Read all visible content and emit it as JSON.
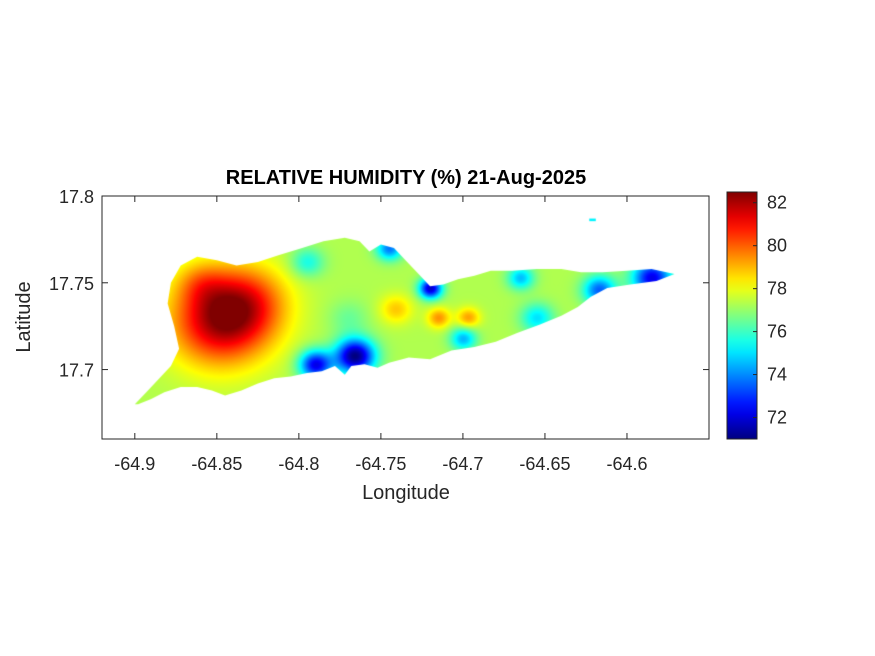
{
  "chart_data": {
    "type": "heatmap",
    "title": "RELATIVE HUMIDITY (%) 21-Aug-2025",
    "xlabel": "Longitude",
    "ylabel": "Latitude",
    "xlim": [
      -64.92,
      -64.55
    ],
    "ylim": [
      17.66,
      17.8
    ],
    "x_ticks": [
      -64.9,
      -64.85,
      -64.8,
      -64.75,
      -64.7,
      -64.65,
      -64.6
    ],
    "x_tick_labels": [
      "-64.9",
      "-64.85",
      "-64.8",
      "-64.75",
      "-64.7",
      "-64.65",
      "-64.6"
    ],
    "y_ticks": [
      17.7,
      17.75,
      17.8
    ],
    "y_tick_labels": [
      "17.7",
      "17.75",
      "17.8"
    ],
    "colorbar": {
      "colormap": "jet",
      "clim": [
        71,
        82.5
      ],
      "ticks": [
        72,
        74,
        76,
        78,
        80,
        82
      ],
      "tick_labels": [
        "72",
        "74",
        "76",
        "78",
        "80",
        "82"
      ]
    },
    "grid": false,
    "outline": [
      [
        -64.9,
        17.68
      ],
      [
        -64.893,
        17.687
      ],
      [
        -64.885,
        17.695
      ],
      [
        -64.878,
        17.702
      ],
      [
        -64.873,
        17.712
      ],
      [
        -64.876,
        17.725
      ],
      [
        -64.88,
        17.738
      ],
      [
        -64.878,
        17.75
      ],
      [
        -64.872,
        17.76
      ],
      [
        -64.862,
        17.765
      ],
      [
        -64.85,
        17.763
      ],
      [
        -64.838,
        17.76
      ],
      [
        -64.825,
        17.762
      ],
      [
        -64.812,
        17.766
      ],
      [
        -64.798,
        17.77
      ],
      [
        -64.785,
        17.774
      ],
      [
        -64.772,
        17.776
      ],
      [
        -64.763,
        17.774
      ],
      [
        -64.757,
        17.768
      ],
      [
        -64.75,
        17.772
      ],
      [
        -64.742,
        17.77
      ],
      [
        -64.735,
        17.763
      ],
      [
        -64.727,
        17.755
      ],
      [
        -64.72,
        17.748
      ],
      [
        -64.712,
        17.749
      ],
      [
        -64.703,
        17.752
      ],
      [
        -64.693,
        17.754
      ],
      [
        -64.683,
        17.757
      ],
      [
        -64.67,
        17.757
      ],
      [
        -64.655,
        17.758
      ],
      [
        -64.64,
        17.758
      ],
      [
        -64.628,
        17.756
      ],
      [
        -64.615,
        17.756
      ],
      [
        -64.6,
        17.757
      ],
      [
        -64.585,
        17.758
      ],
      [
        -64.571,
        17.755
      ],
      [
        -64.582,
        17.751
      ],
      [
        -64.598,
        17.749
      ],
      [
        -64.612,
        17.747
      ],
      [
        -64.622,
        17.742
      ],
      [
        -64.63,
        17.736
      ],
      [
        -64.64,
        17.731
      ],
      [
        -64.653,
        17.726
      ],
      [
        -64.667,
        17.721
      ],
      [
        -64.68,
        17.716
      ],
      [
        -64.693,
        17.713
      ],
      [
        -64.707,
        17.711
      ],
      [
        -64.72,
        17.706
      ],
      [
        -64.733,
        17.707
      ],
      [
        -64.745,
        17.704
      ],
      [
        -64.752,
        17.701
      ],
      [
        -64.76,
        17.703
      ],
      [
        -64.768,
        17.702
      ],
      [
        -64.772,
        17.697
      ],
      [
        -64.778,
        17.702
      ],
      [
        -64.786,
        17.699
      ],
      [
        -64.795,
        17.698
      ],
      [
        -64.805,
        17.696
      ],
      [
        -64.815,
        17.695
      ],
      [
        -64.825,
        17.692
      ],
      [
        -64.835,
        17.688
      ],
      [
        -64.845,
        17.685
      ],
      [
        -64.853,
        17.688
      ],
      [
        -64.862,
        17.69
      ],
      [
        -64.872,
        17.69
      ],
      [
        -64.882,
        17.687
      ],
      [
        -64.89,
        17.683
      ],
      [
        -64.898,
        17.68
      ]
    ],
    "islet": [
      [
        -64.623,
        17.787
      ],
      [
        -64.619,
        17.787
      ],
      [
        -64.619,
        17.7855
      ],
      [
        -64.623,
        17.7855
      ]
    ],
    "hotspots": [
      {
        "lon": -64.848,
        "lat": 17.728,
        "value": 81.8,
        "spread": 0.03
      },
      {
        "lon": -64.832,
        "lat": 17.74,
        "value": 79.5,
        "spread": 0.025
      },
      {
        "lon": -64.86,
        "lat": 17.75,
        "value": 78.5,
        "spread": 0.015
      },
      {
        "lon": -64.741,
        "lat": 17.735,
        "value": 78.8,
        "spread": 0.01
      },
      {
        "lon": -64.715,
        "lat": 17.73,
        "value": 79.4,
        "spread": 0.007
      },
      {
        "lon": -64.697,
        "lat": 17.73,
        "value": 79.3,
        "spread": 0.007
      },
      {
        "lon": -64.766,
        "lat": 17.708,
        "value": 71.0,
        "spread": 0.012
      },
      {
        "lon": -64.79,
        "lat": 17.703,
        "value": 72.2,
        "spread": 0.01
      },
      {
        "lon": -64.72,
        "lat": 17.747,
        "value": 71.8,
        "spread": 0.007
      },
      {
        "lon": -64.585,
        "lat": 17.753,
        "value": 72.2,
        "spread": 0.012
      },
      {
        "lon": -64.617,
        "lat": 17.746,
        "value": 73.5,
        "spread": 0.01
      },
      {
        "lon": -64.745,
        "lat": 17.77,
        "value": 73.8,
        "spread": 0.008
      },
      {
        "lon": -64.795,
        "lat": 17.762,
        "value": 75.5,
        "spread": 0.01
      },
      {
        "lon": -64.7,
        "lat": 17.718,
        "value": 74.5,
        "spread": 0.008
      },
      {
        "lon": -64.655,
        "lat": 17.73,
        "value": 75.0,
        "spread": 0.01
      },
      {
        "lon": -64.665,
        "lat": 17.753,
        "value": 74.6,
        "spread": 0.008
      },
      {
        "lon": -64.77,
        "lat": 17.73,
        "value": 76.5,
        "spread": 0.012
      }
    ],
    "background_value": 77.3
  }
}
